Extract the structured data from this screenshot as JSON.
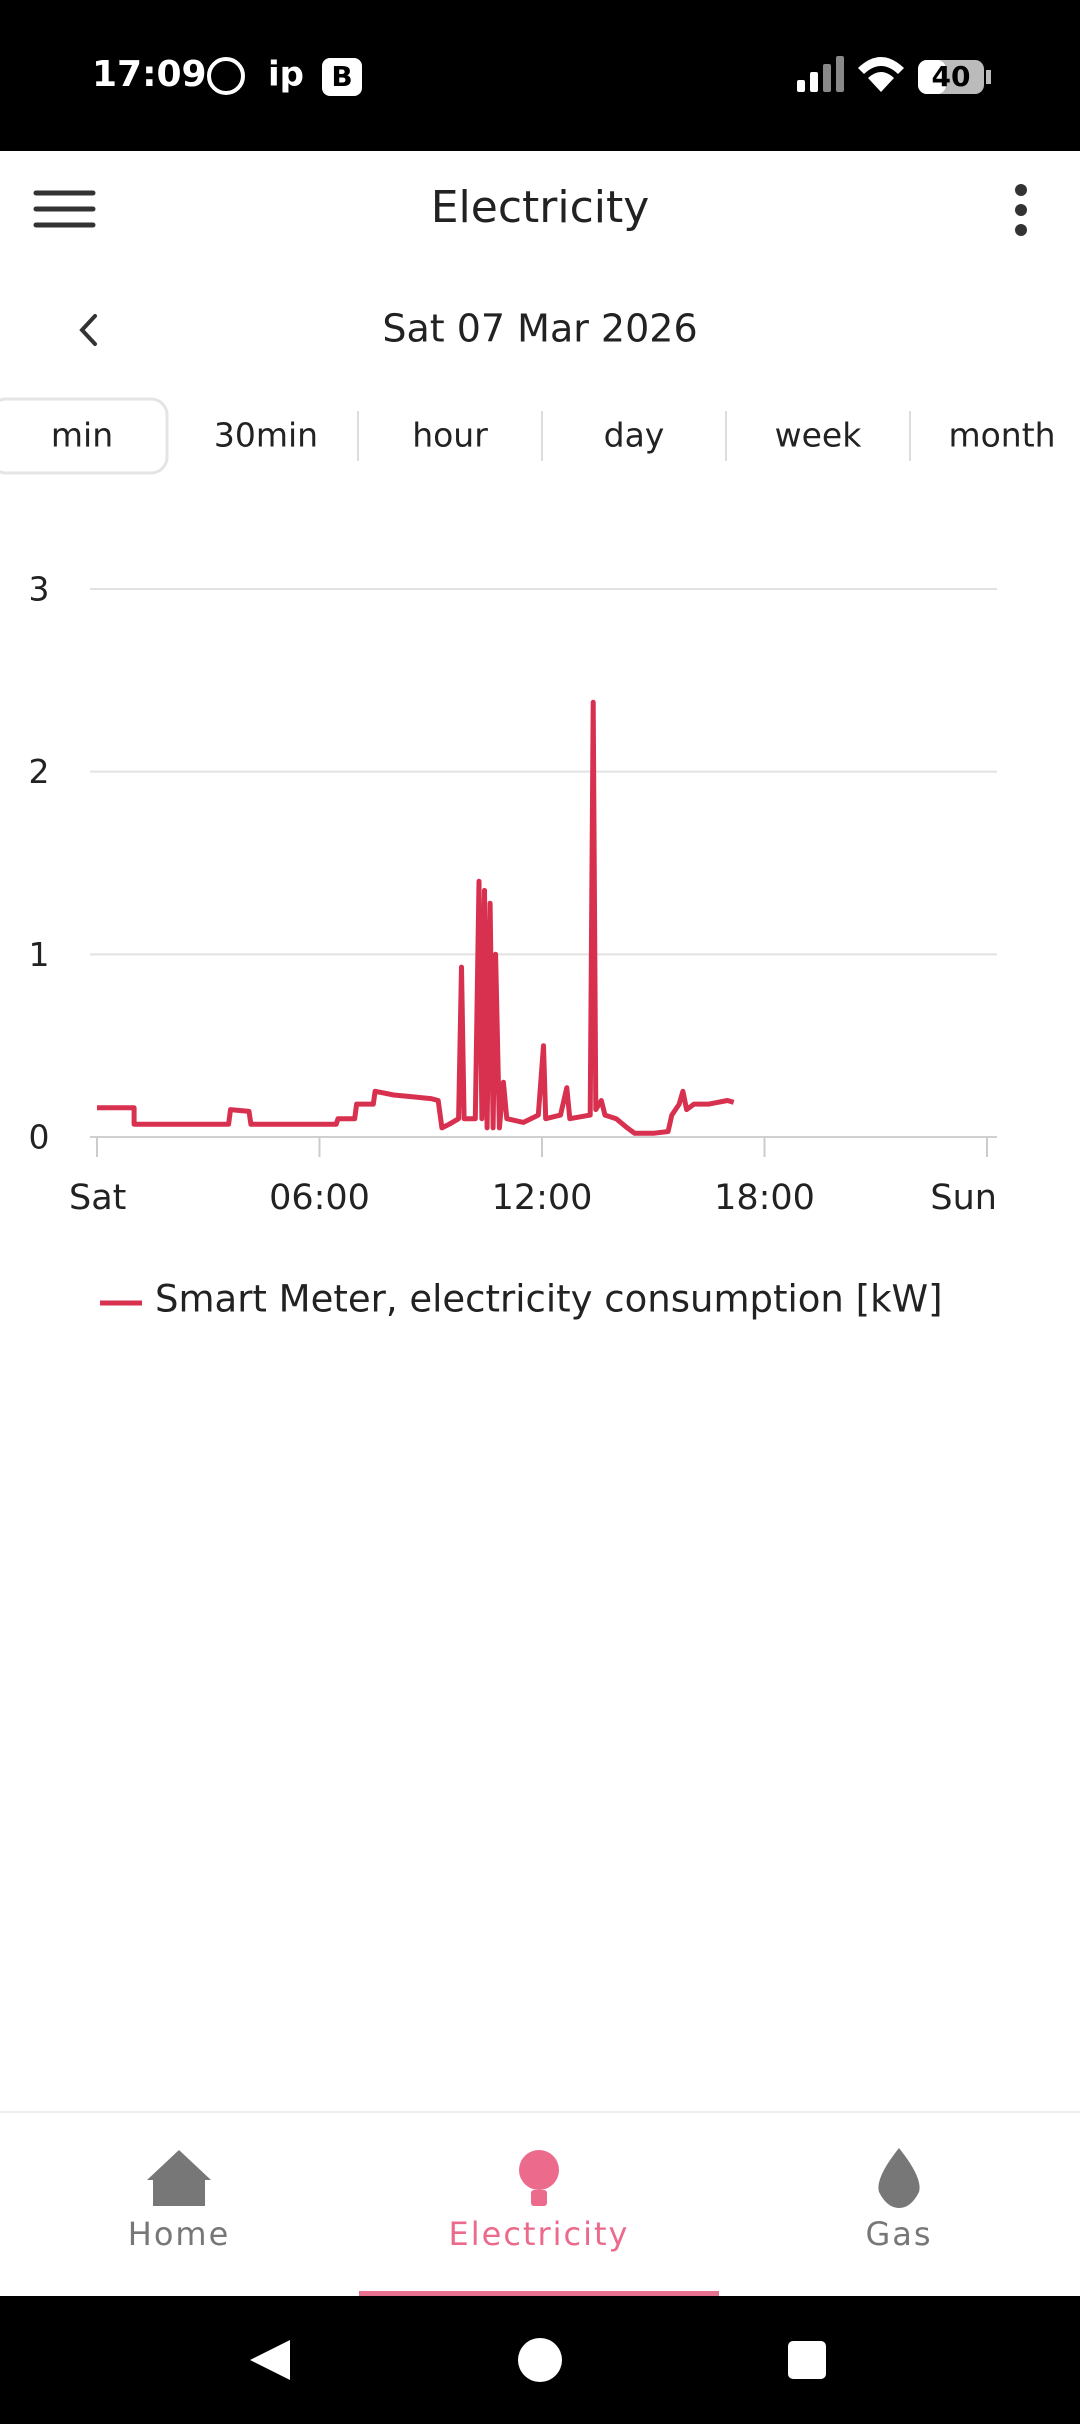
{
  "status_bar": {
    "time": "17:09",
    "carrier": "ip",
    "badge": "B",
    "battery": "40"
  },
  "app_bar": {
    "title": "Electricity"
  },
  "date_nav": {
    "date": "Sat 07 Mar 2026"
  },
  "tabs": {
    "items": [
      "min",
      "30min",
      "hour",
      "day",
      "week",
      "month"
    ],
    "selected": 0
  },
  "chart_data": {
    "type": "line",
    "x": [
      0,
      1.0,
      1.0,
      3.55,
      3.6,
      4.1,
      4.15,
      6.45,
      6.5,
      6.95,
      7.0,
      7.45,
      7.5,
      8.0,
      8.5,
      9.0,
      9.2,
      9.3,
      9.5,
      9.75,
      9.83,
      9.9,
      10.2,
      10.3,
      10.38,
      10.45,
      10.52,
      10.6,
      10.68,
      10.75,
      10.85,
      10.96,
      11.05,
      11.5,
      11.9,
      12.04,
      12.1,
      12.5,
      12.67,
      12.75,
      13.3,
      13.38,
      13.45,
      13.6,
      13.7,
      14.0,
      14.3,
      14.5,
      15.0,
      15.4,
      15.5,
      15.7,
      15.8,
      15.9,
      16.1,
      16.5,
      17.0,
      17.17
    ],
    "xlim": [
      0,
      24
    ],
    "xticks": [
      {
        "value": 0,
        "label": "Sat"
      },
      {
        "value": 6,
        "label": "06:00"
      },
      {
        "value": 12,
        "label": "12:00"
      },
      {
        "value": 18,
        "label": "18:00"
      },
      {
        "value": 24,
        "label": "Sun"
      }
    ],
    "ylim": [
      0,
      3
    ],
    "yticks": [
      0,
      1,
      2,
      3
    ],
    "grid": true,
    "series": [
      {
        "name": "Smart Meter, electricity consumption [kW]",
        "color": "#d8304f",
        "values": [
          0.16,
          0.16,
          0.07,
          0.07,
          0.15,
          0.14,
          0.07,
          0.07,
          0.1,
          0.1,
          0.18,
          0.18,
          0.25,
          0.23,
          0.22,
          0.21,
          0.2,
          0.05,
          0.07,
          0.1,
          0.93,
          0.1,
          0.1,
          1.4,
          0.1,
          1.35,
          0.05,
          1.28,
          0.05,
          1.0,
          0.05,
          0.3,
          0.1,
          0.08,
          0.12,
          0.5,
          0.1,
          0.12,
          0.27,
          0.1,
          0.12,
          2.38,
          0.15,
          0.2,
          0.12,
          0.1,
          0.05,
          0.02,
          0.02,
          0.03,
          0.12,
          0.18,
          0.25,
          0.15,
          0.18,
          0.18,
          0.2,
          0.19
        ]
      }
    ],
    "legend": "bottom-left"
  },
  "bottom_nav": {
    "items": [
      "Home",
      "Electricity",
      "Gas"
    ],
    "selected": 1
  }
}
